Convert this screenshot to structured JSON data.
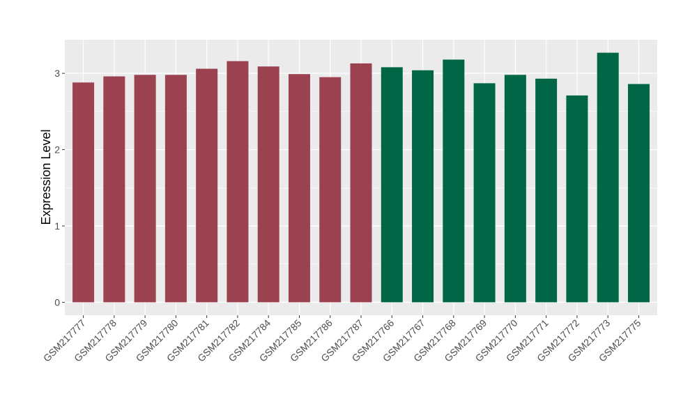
{
  "chart_data": {
    "type": "bar",
    "title": "",
    "xlabel": "",
    "ylabel": "Expression Level",
    "ylim": [
      -0.17,
      3.44
    ],
    "yticks": [
      0,
      1,
      2,
      3
    ],
    "grid": true,
    "legend": "none",
    "categories": [
      "GSM217777",
      "GSM217778",
      "GSM217779",
      "GSM217780",
      "GSM217781",
      "GSM217782",
      "GSM217784",
      "GSM217785",
      "GSM217786",
      "GSM217787",
      "GSM217766",
      "GSM217767",
      "GSM217768",
      "GSM217769",
      "GSM217770",
      "GSM217771",
      "GSM217772",
      "GSM217773",
      "GSM217775"
    ],
    "values": [
      2.88,
      2.96,
      2.98,
      2.98,
      3.06,
      3.16,
      3.09,
      2.99,
      2.95,
      3.13,
      3.08,
      3.04,
      3.18,
      2.87,
      2.98,
      2.93,
      2.71,
      3.27,
      2.86
    ],
    "groups": [
      0,
      0,
      0,
      0,
      0,
      0,
      0,
      0,
      0,
      0,
      1,
      1,
      1,
      1,
      1,
      1,
      1,
      1,
      1
    ],
    "colors": [
      "#9a4250",
      "#006645"
    ],
    "panel_background": "#ebebeb"
  }
}
